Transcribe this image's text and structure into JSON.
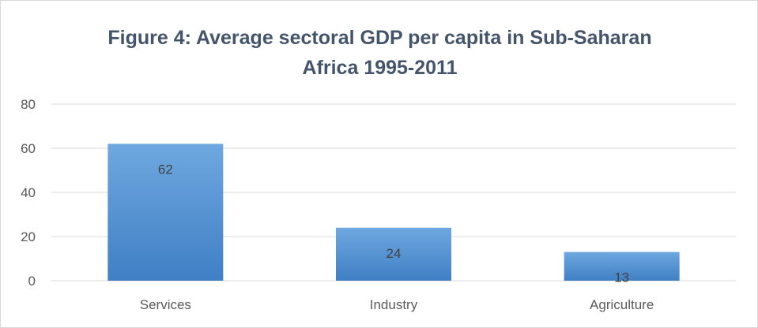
{
  "chart_data": {
    "type": "bar",
    "title_line1": "Figure 4: Average sectoral GDP per capita in Sub-Saharan",
    "title_line2": "Africa 1995-2011",
    "categories": [
      "Services",
      "Industry",
      "Agriculture"
    ],
    "values": [
      62,
      24,
      13
    ],
    "data_labels": [
      "62",
      "24",
      "13"
    ],
    "ylim": [
      0,
      80
    ],
    "yticks": [
      0,
      20,
      40,
      60,
      80
    ],
    "xlabel": "",
    "ylabel": "",
    "grid": true,
    "legend": "none",
    "bar_color_top": "#6fa8e0",
    "bar_color_bottom": "#3f7fc4",
    "grid_color": "#d9d9d9",
    "title_color": "#44546a"
  }
}
